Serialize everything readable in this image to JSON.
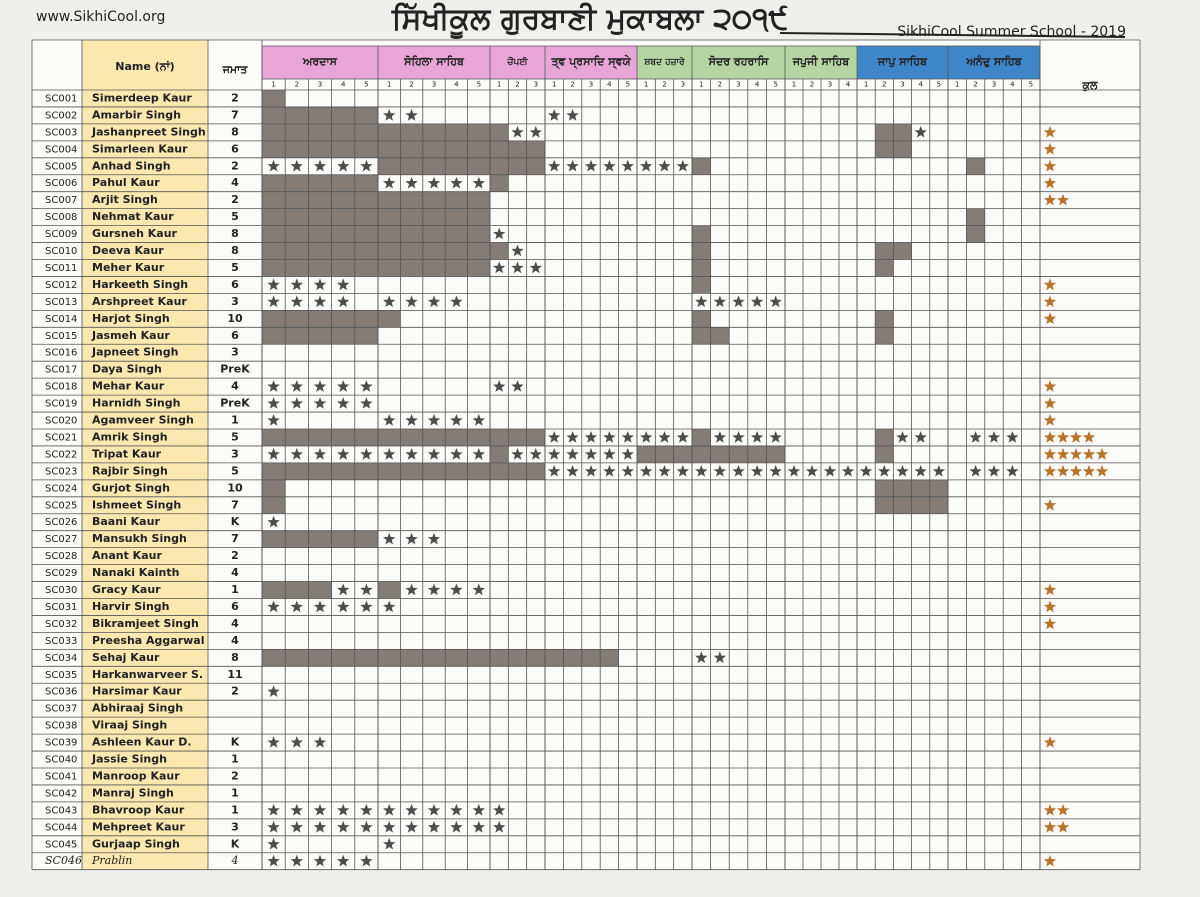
{
  "header": {
    "website": "www.SikhiCool.org",
    "title": "ਸਿੱਖੀਕੂਲ ਗੁਰਬਾਣੀ ਮੁਕਾਬਲਾ ੨੦੧੯",
    "subtitle": "SikhiCool Summer School - 2019"
  },
  "table": {
    "columns": {
      "name": "Name (ਨਾਂ)",
      "grade": "ਜਮਾਤ",
      "total": "ਕੁਲ"
    },
    "sections": [
      {
        "label": "ਅਰਦਾਸ",
        "color": "#e8a6d8",
        "parts": [
          1,
          2,
          3,
          4,
          5
        ]
      },
      {
        "label": "ਸੋਹਿਲਾ ਸਾਹਿਬ",
        "color": "#e8a6d8",
        "parts": [
          1,
          2,
          3,
          4,
          5
        ]
      },
      {
        "label": "ਚੌਪਈ",
        "color": "#e8a6d8",
        "parts": [
          1,
          2,
          3
        ]
      },
      {
        "label": "ਤ੍ਵ ਪ੍ਰਸਾਦਿ ਸ੍ਵਯੇ",
        "color": "#e8a6d8",
        "parts": [
          1,
          2,
          3,
          4,
          5
        ]
      },
      {
        "label": "ਸ਼ਬਦ ਹਜ਼ਾਰੇ",
        "color": "#b5d6a4",
        "parts": [
          1,
          2,
          3
        ]
      },
      {
        "label": "ਸੋਦਰ ਰਹਰਾਸਿ",
        "color": "#b5d6a4",
        "parts": [
          1,
          2,
          3,
          4,
          5
        ]
      },
      {
        "label": "ਜਪੁਜੀ ਸਾਹਿਬ",
        "color": "#b5d6a4",
        "parts": [
          1,
          2,
          3,
          4
        ]
      },
      {
        "label": "ਜਾਪੁ ਸਾਹਿਬ",
        "color": "#3f86c8",
        "parts": [
          1,
          2,
          3,
          4,
          5
        ]
      },
      {
        "label": "ਅਨੰਦੁ ਸਾਹਿਬ",
        "color": "#3f86c8",
        "parts": [
          1,
          2,
          3,
          4,
          5
        ]
      }
    ],
    "rows": [
      [
        "SC001",
        "Simerdeep Kaur",
        "2"
      ],
      [
        "SC002",
        "Amarbir Singh",
        "7"
      ],
      [
        "SC003",
        "Jashanpreet Singh",
        "8"
      ],
      [
        "SC004",
        "Simarleen Kaur",
        "6"
      ],
      [
        "SC005",
        "Anhad Singh",
        "2"
      ],
      [
        "SC006",
        "Pahul Kaur",
        "4"
      ],
      [
        "SC007",
        "Arjit Singh",
        "2"
      ],
      [
        "SC008",
        "Nehmat Kaur",
        "5"
      ],
      [
        "SC009",
        "Gursneh Kaur",
        "8"
      ],
      [
        "SC010",
        "Deeva Kaur",
        "8"
      ],
      [
        "SC011",
        "Meher Kaur",
        "5"
      ],
      [
        "SC012",
        "Harkeeth Singh",
        "6"
      ],
      [
        "SC013",
        "Arshpreet Kaur",
        "3"
      ],
      [
        "SC014",
        "Harjot Singh",
        "10"
      ],
      [
        "SC015",
        "Jasmeh Kaur",
        "6"
      ],
      [
        "SC016",
        "Japneet Singh",
        "3"
      ],
      [
        "SC017",
        "Daya Singh",
        "PreK"
      ],
      [
        "SC018",
        "Mehar Kaur",
        "4"
      ],
      [
        "SC019",
        "Harnidh Singh",
        "PreK"
      ],
      [
        "SC020",
        "Agamveer Singh",
        "1"
      ],
      [
        "SC021",
        "Amrik Singh",
        "5"
      ],
      [
        "SC022",
        "Tripat Kaur",
        "3"
      ],
      [
        "SC023",
        "Rajbir Singh",
        "5"
      ],
      [
        "SC024",
        "Gurjot Singh",
        "10"
      ],
      [
        "SC025",
        "Ishmeet Singh",
        "7"
      ],
      [
        "SC026",
        "Baani Kaur",
        "K"
      ],
      [
        "SC027",
        "Mansukh Singh",
        "7"
      ],
      [
        "SC028",
        "Anant Kaur",
        "2"
      ],
      [
        "SC029",
        "Nanaki Kainth",
        "4"
      ],
      [
        "SC030",
        "Gracy Kaur",
        "1"
      ],
      [
        "SC031",
        "Harvir Singh",
        "6"
      ],
      [
        "SC032",
        "Bikramjeet Singh",
        "4"
      ],
      [
        "SC033",
        "Preesha Aggarwal",
        "4"
      ],
      [
        "SC034",
        "Sehaj Kaur",
        "8"
      ],
      [
        "SC035",
        "Harkanwarveer S.",
        "11"
      ],
      [
        "SC036",
        "Harsimar Kaur",
        "2"
      ],
      [
        "SC037",
        "Abhiraaj Singh",
        null
      ],
      [
        "SC038",
        "Viraaj Singh",
        null
      ],
      [
        "SC039",
        "Ashleen Kaur D.",
        "K"
      ],
      [
        "SC040",
        "Jassie Singh",
        "1"
      ],
      [
        "SC041",
        "Manroop Kaur",
        "2"
      ],
      [
        "SC042",
        "Manraj Singh",
        "1"
      ],
      [
        "SC043",
        "Bhavroop Kaur",
        "1"
      ],
      [
        "SC044",
        "Mehpreet Kaur",
        "3"
      ],
      [
        "SC045",
        "Gurjaap Singh",
        "K"
      ],
      [
        "SC046",
        "Prablin",
        "4"
      ]
    ]
  }
}
